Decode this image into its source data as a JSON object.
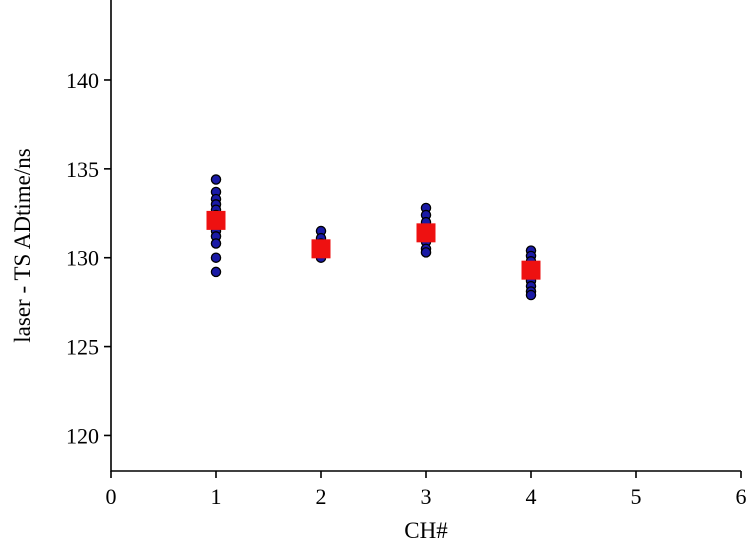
{
  "chart_data": {
    "type": "scatter",
    "title": "",
    "xlabel": "CH#",
    "ylabel": "laser - TS ADtime/ns",
    "xlim": [
      0,
      6
    ],
    "ylim": [
      118,
      144.5
    ],
    "xticks": [
      0,
      1,
      2,
      3,
      4,
      5,
      6
    ],
    "yticks": [
      120,
      125,
      130,
      135,
      140
    ],
    "grid": false,
    "legend": "none",
    "series": [
      {
        "marker": "circle",
        "color": "#1a1aa6",
        "points": [
          [
            1,
            134.4
          ],
          [
            1,
            133.7
          ],
          [
            1,
            133.3
          ],
          [
            1,
            133.0
          ],
          [
            1,
            132.7
          ],
          [
            1,
            132.4
          ],
          [
            1,
            132.1
          ],
          [
            1,
            131.8
          ],
          [
            1,
            131.5
          ],
          [
            1,
            131.2
          ],
          [
            1,
            130.8
          ],
          [
            1,
            130.0
          ],
          [
            1,
            129.2
          ],
          [
            2,
            131.5
          ],
          [
            2,
            131.1
          ],
          [
            2,
            130.8
          ],
          [
            2,
            130.4
          ],
          [
            2,
            130.1
          ],
          [
            2,
            130.0
          ],
          [
            3,
            132.8
          ],
          [
            3,
            132.4
          ],
          [
            3,
            132.0
          ],
          [
            3,
            131.6
          ],
          [
            3,
            131.3
          ],
          [
            3,
            130.9
          ],
          [
            3,
            130.5
          ],
          [
            3,
            130.3
          ],
          [
            4,
            130.4
          ],
          [
            4,
            130.1
          ],
          [
            4,
            129.8
          ],
          [
            4,
            129.4
          ],
          [
            4,
            129.1
          ],
          [
            4,
            128.7
          ],
          [
            4,
            128.4
          ],
          [
            4,
            128.1
          ],
          [
            4,
            127.9
          ]
        ]
      },
      {
        "marker": "square",
        "color": "#ee1111",
        "points": [
          [
            1,
            132.1
          ],
          [
            2,
            130.5
          ],
          [
            3,
            131.4
          ],
          [
            4,
            129.3
          ]
        ]
      }
    ]
  }
}
